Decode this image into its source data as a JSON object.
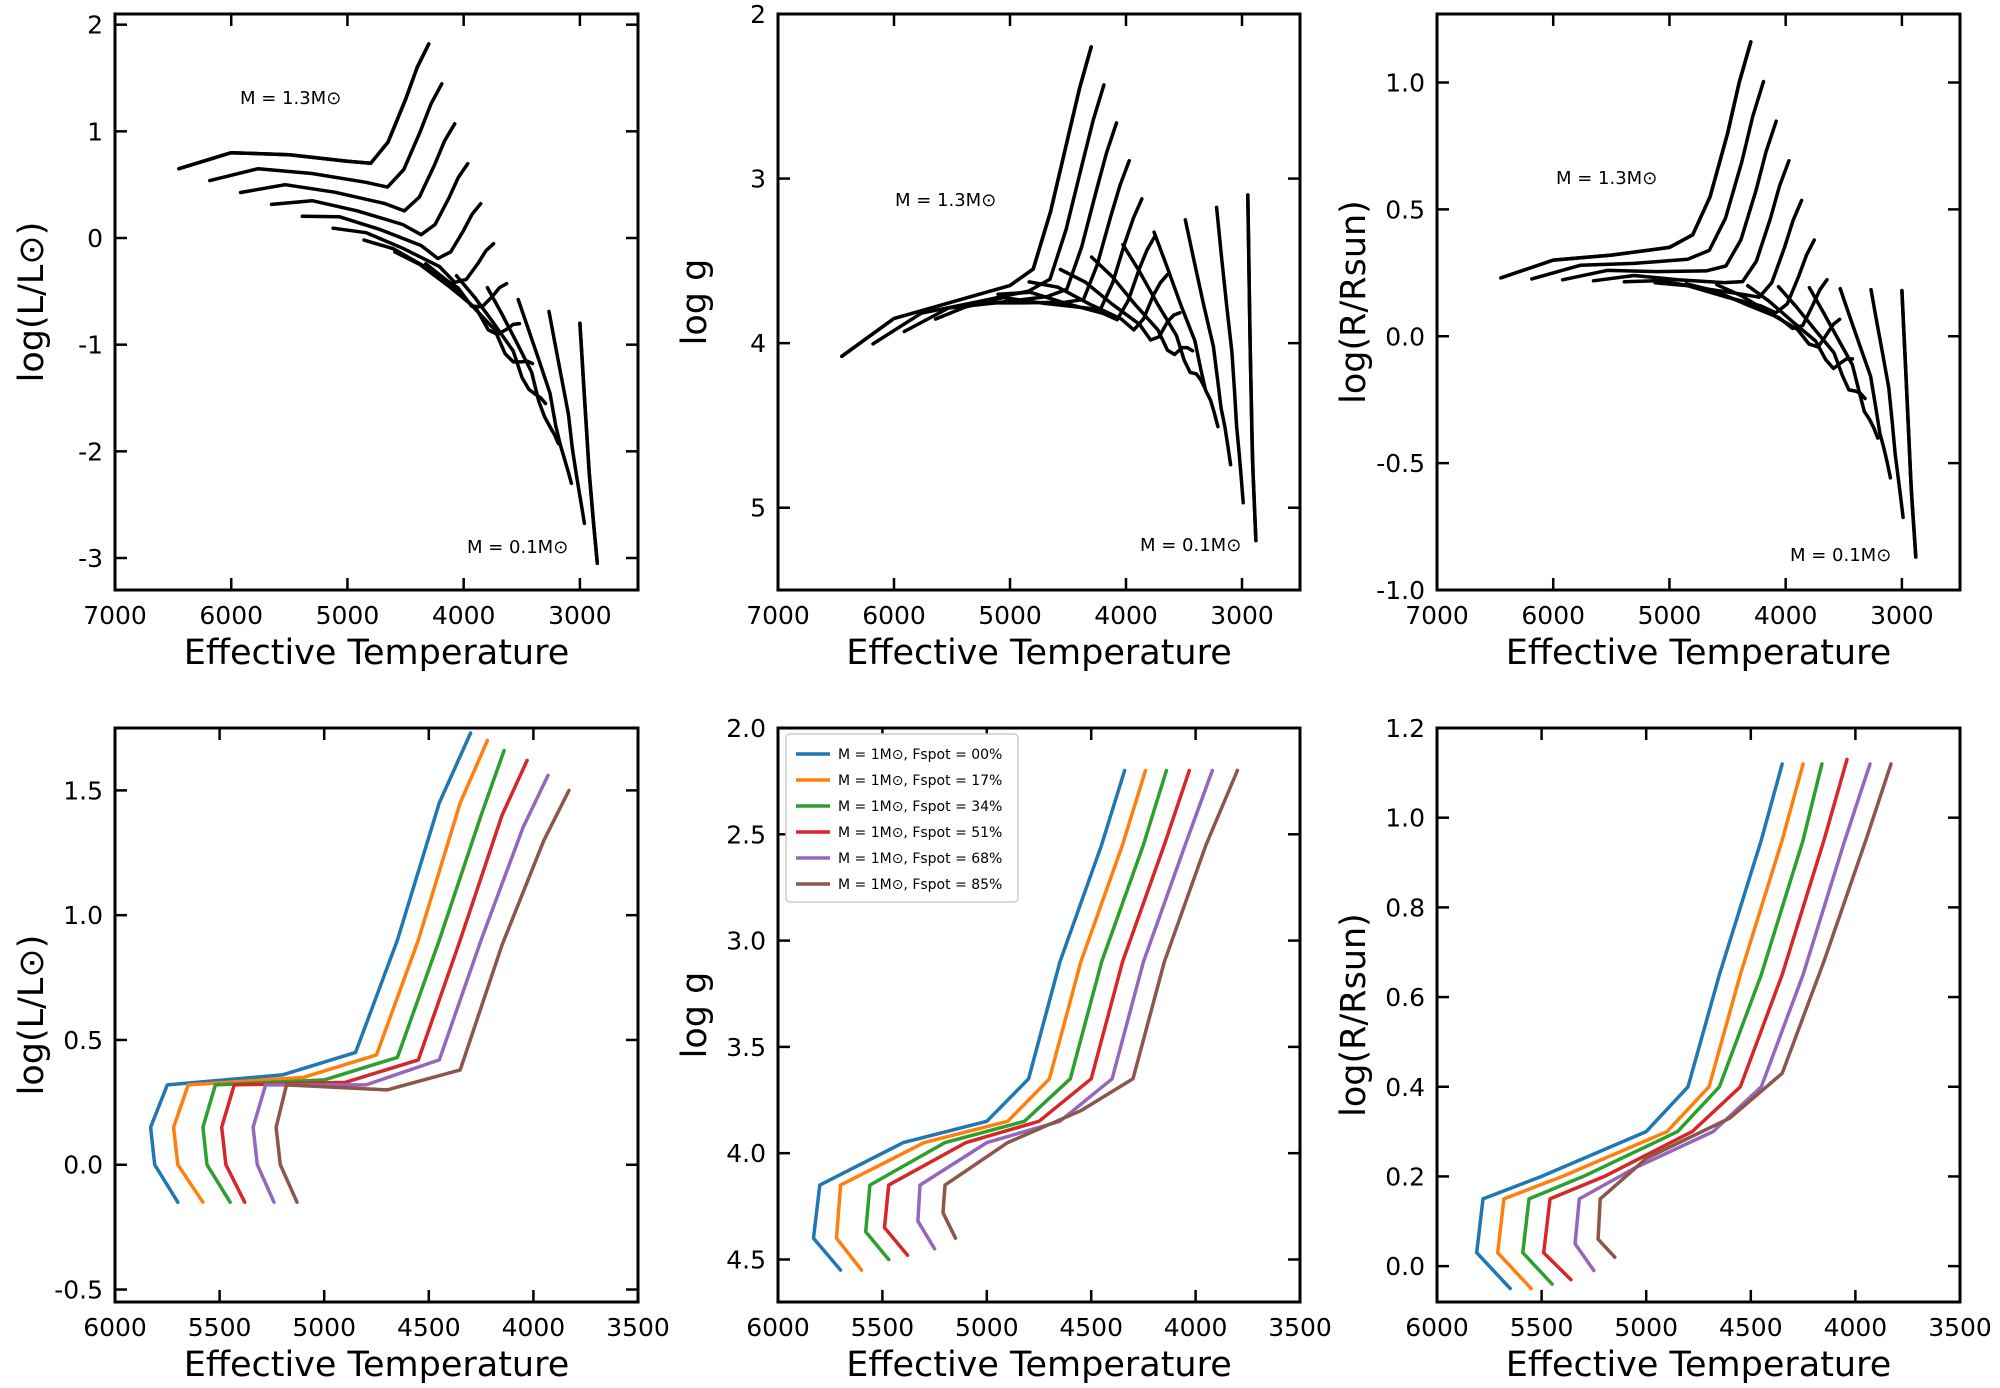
{
  "colors": {
    "black": "#000000",
    "fspot": [
      "#1f77b4",
      "#ff7f0e",
      "#2ca02c",
      "#d62728",
      "#9467bd",
      "#8c564b"
    ]
  },
  "chart_data": [
    {
      "type": "line",
      "panel": "top-left",
      "xlabel": "Effective Temperature",
      "ylabel": "log(L/L⊙)",
      "xlim": [
        7000,
        2500
      ],
      "ylim": [
        -3.3,
        2.1
      ],
      "xticks": [
        "7000",
        "6000",
        "5000",
        "4000",
        "3000"
      ],
      "yticks": [
        "2",
        "1",
        "0",
        "-1",
        "-2",
        "-3"
      ],
      "annotations": [
        "M = 1.3M⊙",
        "M = 0.1M⊙"
      ],
      "description_tracks": "Grid of evolutionary tracks from M = 0.1M⊙ to M = 1.3M⊙",
      "hi_track": [
        [
          6450,
          0.65
        ],
        [
          6000,
          0.8
        ],
        [
          5500,
          0.78
        ],
        [
          5000,
          0.72
        ],
        [
          4800,
          0.7
        ],
        [
          4650,
          0.9
        ],
        [
          4500,
          1.3
        ],
        [
          4400,
          1.6
        ],
        [
          4300,
          1.82
        ]
      ],
      "lo_track": [
        [
          3000,
          -0.8
        ],
        [
          2960,
          -1.5
        ],
        [
          2920,
          -2.2
        ],
        [
          2880,
          -2.7
        ],
        [
          2850,
          -3.05
        ]
      ]
    },
    {
      "type": "line",
      "panel": "top-middle",
      "xlabel": "Effective Temperature",
      "ylabel": "log g",
      "xlim": [
        7000,
        2500
      ],
      "ylim": [
        5.5,
        2.0
      ],
      "xticks": [
        "7000",
        "6000",
        "5000",
        "4000",
        "3000"
      ],
      "yticks": [
        "2",
        "3",
        "4",
        "5"
      ],
      "annotations": [
        "M = 1.3M⊙",
        "M = 0.1M⊙"
      ],
      "hi_track": [
        [
          6450,
          4.08
        ],
        [
          6000,
          3.85
        ],
        [
          5500,
          3.75
        ],
        [
          5000,
          3.65
        ],
        [
          4800,
          3.55
        ],
        [
          4650,
          3.2
        ],
        [
          4500,
          2.75
        ],
        [
          4400,
          2.45
        ],
        [
          4300,
          2.2
        ]
      ],
      "lo_track": [
        [
          2950,
          3.1
        ],
        [
          2930,
          4.0
        ],
        [
          2910,
          4.7
        ],
        [
          2880,
          5.2
        ]
      ]
    },
    {
      "type": "line",
      "panel": "top-right",
      "xlabel": "Effective Temperature",
      "ylabel": "log(R/Rsun)",
      "xlim": [
        7000,
        2500
      ],
      "ylim": [
        -1.0,
        1.27
      ],
      "xticks": [
        "7000",
        "6000",
        "5000",
        "4000",
        "3000"
      ],
      "yticks": [
        "1.0",
        "0.5",
        "0.0",
        "-0.5",
        "-1.0"
      ],
      "annotations": [
        "M = 1.3M⊙",
        "M = 0.1M⊙"
      ],
      "hi_track": [
        [
          6450,
          0.23
        ],
        [
          6000,
          0.3
        ],
        [
          5500,
          0.32
        ],
        [
          5000,
          0.35
        ],
        [
          4800,
          0.4
        ],
        [
          4650,
          0.55
        ],
        [
          4500,
          0.8
        ],
        [
          4400,
          1.0
        ],
        [
          4300,
          1.16
        ]
      ],
      "lo_track": [
        [
          3000,
          0.18
        ],
        [
          2960,
          -0.2
        ],
        [
          2920,
          -0.6
        ],
        [
          2880,
          -0.87
        ]
      ]
    },
    {
      "type": "line",
      "panel": "bottom-left",
      "xlabel": "Effective Temperature",
      "ylabel": "log(L/L⊙)",
      "xlim": [
        6000,
        3500
      ],
      "ylim": [
        -0.55,
        1.75
      ],
      "xticks": [
        "6000",
        "5500",
        "5000",
        "4500",
        "4000",
        "3500"
      ],
      "yticks": [
        "1.5",
        "1.0",
        "0.5",
        "0.0",
        "-0.5"
      ],
      "series": [
        {
          "name": "Fspot = 00%",
          "points": [
            [
              5700,
              -0.15
            ],
            [
              5810,
              0.0
            ],
            [
              5830,
              0.15
            ],
            [
              5750,
              0.32
            ],
            [
              5200,
              0.36
            ],
            [
              4850,
              0.45
            ],
            [
              4650,
              0.9
            ],
            [
              4450,
              1.45
            ],
            [
              4300,
              1.73
            ]
          ]
        },
        {
          "name": "Fspot = 17%",
          "points": [
            [
              5580,
              -0.15
            ],
            [
              5700,
              0.0
            ],
            [
              5720,
              0.15
            ],
            [
              5650,
              0.32
            ],
            [
              5100,
              0.35
            ],
            [
              4750,
              0.44
            ],
            [
              4550,
              0.9
            ],
            [
              4350,
              1.45
            ],
            [
              4220,
              1.7
            ]
          ]
        },
        {
          "name": "Fspot = 34%",
          "points": [
            [
              5450,
              -0.15
            ],
            [
              5560,
              0.0
            ],
            [
              5580,
              0.15
            ],
            [
              5520,
              0.32
            ],
            [
              5000,
              0.34
            ],
            [
              4650,
              0.43
            ],
            [
              4450,
              0.9
            ],
            [
              4250,
              1.4
            ],
            [
              4140,
              1.66
            ]
          ]
        },
        {
          "name": "Fspot = 51%",
          "points": [
            [
              5380,
              -0.15
            ],
            [
              5470,
              0.0
            ],
            [
              5490,
              0.15
            ],
            [
              5430,
              0.32
            ],
            [
              4900,
              0.33
            ],
            [
              4550,
              0.42
            ],
            [
              4350,
              0.9
            ],
            [
              4150,
              1.4
            ],
            [
              4030,
              1.62
            ]
          ]
        },
        {
          "name": "Fspot = 68%",
          "points": [
            [
              5240,
              -0.15
            ],
            [
              5320,
              0.0
            ],
            [
              5340,
              0.15
            ],
            [
              5280,
              0.32
            ],
            [
              4800,
              0.32
            ],
            [
              4450,
              0.42
            ],
            [
              4250,
              0.9
            ],
            [
              4050,
              1.35
            ],
            [
              3930,
              1.56
            ]
          ]
        },
        {
          "name": "Fspot = 85%",
          "points": [
            [
              5130,
              -0.15
            ],
            [
              5210,
              0.0
            ],
            [
              5230,
              0.15
            ],
            [
              5180,
              0.32
            ],
            [
              4700,
              0.3
            ],
            [
              4350,
              0.38
            ],
            [
              4150,
              0.88
            ],
            [
              3950,
              1.3
            ],
            [
              3830,
              1.5
            ]
          ]
        }
      ]
    },
    {
      "type": "line",
      "panel": "bottom-middle",
      "xlabel": "Effective Temperature",
      "ylabel": "log g",
      "xlim": [
        6000,
        3500
      ],
      "ylim": [
        4.7,
        2.0
      ],
      "xticks": [
        "6000",
        "5500",
        "5000",
        "4500",
        "4000",
        "3500"
      ],
      "yticks": [
        "2.0",
        "2.5",
        "3.0",
        "3.5",
        "4.0",
        "4.5"
      ],
      "legend_position": "upper-left",
      "series": [
        {
          "name": "M = 1M⊙, Fspot = 00%",
          "points": [
            [
              5700,
              4.55
            ],
            [
              5830,
              4.4
            ],
            [
              5800,
              4.15
            ],
            [
              5400,
              3.95
            ],
            [
              5000,
              3.85
            ],
            [
              4800,
              3.65
            ],
            [
              4650,
              3.1
            ],
            [
              4450,
              2.55
            ],
            [
              4340,
              2.2
            ]
          ]
        },
        {
          "name": "M = 1M⊙, Fspot = 17%",
          "points": [
            [
              5600,
              4.55
            ],
            [
              5720,
              4.4
            ],
            [
              5700,
              4.15
            ],
            [
              5300,
              3.95
            ],
            [
              4900,
              3.85
            ],
            [
              4700,
              3.65
            ],
            [
              4550,
              3.1
            ],
            [
              4350,
              2.55
            ],
            [
              4240,
              2.2
            ]
          ]
        },
        {
          "name": "M = 1M⊙, Fspot = 34%",
          "points": [
            [
              5470,
              4.5
            ],
            [
              5580,
              4.37
            ],
            [
              5560,
              4.15
            ],
            [
              5200,
              3.95
            ],
            [
              4820,
              3.85
            ],
            [
              4600,
              3.65
            ],
            [
              4450,
              3.1
            ],
            [
              4250,
              2.55
            ],
            [
              4140,
              2.2
            ]
          ]
        },
        {
          "name": "M = 1M⊙, Fspot = 51%",
          "points": [
            [
              5380,
              4.48
            ],
            [
              5490,
              4.35
            ],
            [
              5470,
              4.15
            ],
            [
              5100,
              3.95
            ],
            [
              4750,
              3.85
            ],
            [
              4500,
              3.65
            ],
            [
              4350,
              3.1
            ],
            [
              4150,
              2.55
            ],
            [
              4030,
              2.2
            ]
          ]
        },
        {
          "name": "M = 1M⊙, Fspot = 68%",
          "points": [
            [
              5250,
              4.45
            ],
            [
              5330,
              4.32
            ],
            [
              5320,
              4.15
            ],
            [
              5000,
              3.95
            ],
            [
              4650,
              3.85
            ],
            [
              4400,
              3.65
            ],
            [
              4250,
              3.1
            ],
            [
              4050,
              2.55
            ],
            [
              3920,
              2.2
            ]
          ]
        },
        {
          "name": "M = 1M⊙, Fspot = 85%",
          "points": [
            [
              5150,
              4.4
            ],
            [
              5210,
              4.28
            ],
            [
              5200,
              4.15
            ],
            [
              4900,
              3.95
            ],
            [
              4550,
              3.8
            ],
            [
              4300,
              3.65
            ],
            [
              4150,
              3.1
            ],
            [
              3950,
              2.55
            ],
            [
              3800,
              2.2
            ]
          ]
        }
      ]
    },
    {
      "type": "line",
      "panel": "bottom-right",
      "xlabel": "Effective Temperature",
      "ylabel": "log(R/Rsun)",
      "xlim": [
        6000,
        3500
      ],
      "ylim": [
        -0.08,
        1.2
      ],
      "xticks": [
        "6000",
        "5500",
        "5000",
        "4500",
        "4000",
        "3500"
      ],
      "yticks": [
        "1.2",
        "1.0",
        "0.8",
        "0.6",
        "0.4",
        "0.2",
        "0.0"
      ],
      "series": [
        {
          "name": "Fspot = 00%",
          "points": [
            [
              5650,
              -0.05
            ],
            [
              5810,
              0.03
            ],
            [
              5780,
              0.15
            ],
            [
              5500,
              0.2
            ],
            [
              5000,
              0.3
            ],
            [
              4800,
              0.4
            ],
            [
              4650,
              0.65
            ],
            [
              4450,
              0.95
            ],
            [
              4350,
              1.12
            ]
          ]
        },
        {
          "name": "Fspot = 17%",
          "points": [
            [
              5550,
              -0.05
            ],
            [
              5710,
              0.03
            ],
            [
              5680,
              0.15
            ],
            [
              5400,
              0.2
            ],
            [
              4900,
              0.3
            ],
            [
              4700,
              0.4
            ],
            [
              4550,
              0.65
            ],
            [
              4350,
              0.95
            ],
            [
              4250,
              1.12
            ]
          ]
        },
        {
          "name": "Fspot = 34%",
          "points": [
            [
              5450,
              -0.04
            ],
            [
              5590,
              0.03
            ],
            [
              5560,
              0.15
            ],
            [
              5300,
              0.2
            ],
            [
              4850,
              0.3
            ],
            [
              4650,
              0.4
            ],
            [
              4450,
              0.65
            ],
            [
              4250,
              0.95
            ],
            [
              4160,
              1.12
            ]
          ]
        },
        {
          "name": "Fspot = 51%",
          "points": [
            [
              5360,
              -0.03
            ],
            [
              5490,
              0.03
            ],
            [
              5460,
              0.15
            ],
            [
              5200,
              0.2
            ],
            [
              4780,
              0.3
            ],
            [
              4550,
              0.4
            ],
            [
              4350,
              0.65
            ],
            [
              4150,
              0.95
            ],
            [
              4040,
              1.13
            ]
          ]
        },
        {
          "name": "Fspot = 68%",
          "points": [
            [
              5250,
              -0.01
            ],
            [
              5340,
              0.05
            ],
            [
              5320,
              0.15
            ],
            [
              5050,
              0.22
            ],
            [
              4680,
              0.3
            ],
            [
              4450,
              0.4
            ],
            [
              4250,
              0.65
            ],
            [
              4050,
              0.95
            ],
            [
              3930,
              1.12
            ]
          ]
        },
        {
          "name": "Fspot = 85%",
          "points": [
            [
              5150,
              0.02
            ],
            [
              5230,
              0.06
            ],
            [
              5220,
              0.15
            ],
            [
              5000,
              0.24
            ],
            [
              4600,
              0.33
            ],
            [
              4350,
              0.43
            ],
            [
              4150,
              0.68
            ],
            [
              3950,
              0.95
            ],
            [
              3830,
              1.12
            ]
          ]
        }
      ]
    }
  ]
}
